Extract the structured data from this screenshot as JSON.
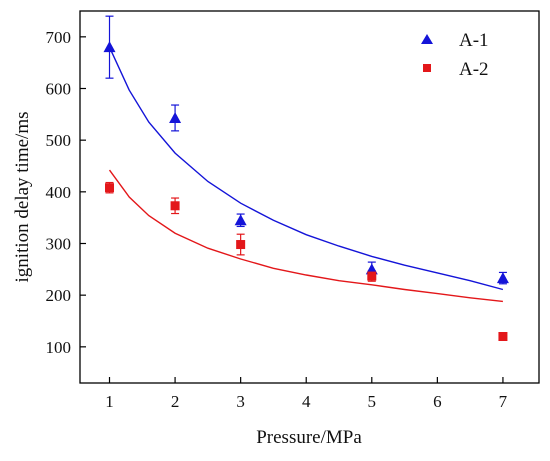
{
  "chart_data": {
    "type": "scatter",
    "xlabel": "Pressure/MPa",
    "ylabel": "ignition delay time/ms",
    "xlim": [
      0.55,
      7.55
    ],
    "ylim": [
      30,
      750
    ],
    "x_ticks": [
      1,
      2,
      3,
      4,
      5,
      6,
      7
    ],
    "x_tick_labels": [
      "1",
      "2",
      "3",
      "4",
      "5",
      "6",
      "7"
    ],
    "y_ticks": [
      100,
      200,
      300,
      400,
      500,
      600,
      700
    ],
    "y_tick_labels": [
      "100",
      "200",
      "300",
      "400",
      "500",
      "600",
      "700"
    ],
    "grid": false,
    "legend_position": "top-right",
    "series": [
      {
        "name": "A-1",
        "marker": "triangle",
        "color": "#1414d8",
        "x": [
          1,
          2,
          3,
          5,
          7
        ],
        "y": [
          680,
          543,
          345,
          250,
          233
        ],
        "error": [
          60,
          25,
          12,
          14,
          11
        ],
        "fit": {
          "x": [
            1.0,
            1.3,
            1.6,
            2.0,
            2.5,
            3.0,
            3.5,
            4.0,
            4.5,
            5.0,
            5.5,
            6.0,
            6.5,
            7.0
          ],
          "y": [
            680,
            597,
            535,
            475,
            420,
            378,
            345,
            317,
            295,
            275,
            258,
            243,
            228,
            211
          ]
        }
      },
      {
        "name": "A-2",
        "marker": "square",
        "color": "#e3171a",
        "x": [
          1,
          2,
          3,
          5,
          7
        ],
        "y": [
          408,
          373,
          298,
          237,
          120
        ],
        "error": [
          10,
          15,
          20,
          10,
          3
        ],
        "fit": {
          "x": [
            1.0,
            1.3,
            1.6,
            2.0,
            2.5,
            3.0,
            3.5,
            4.0,
            4.5,
            5.0,
            5.5,
            6.0,
            6.5,
            7.0
          ],
          "y": [
            442,
            390,
            354,
            320,
            291,
            270,
            252,
            239,
            228,
            220,
            211,
            203,
            195,
            188
          ]
        }
      }
    ]
  }
}
